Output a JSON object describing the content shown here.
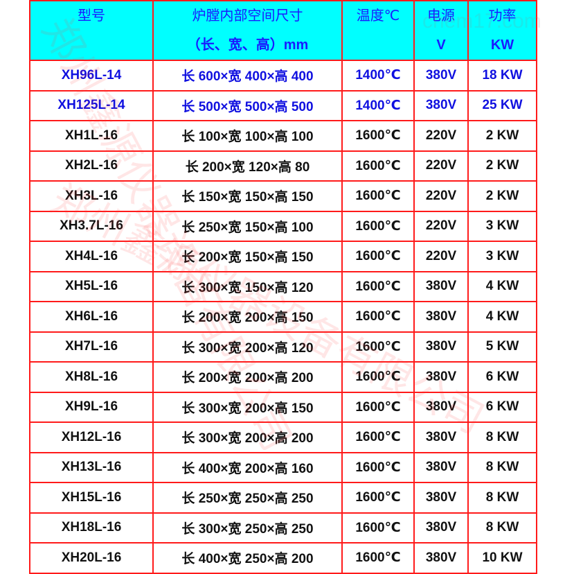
{
  "header": [
    {
      "line1": "型号",
      "line2": ""
    },
    {
      "line1": "炉膛内部空间尺寸",
      "line2": "（长、宽、高）mm"
    },
    {
      "line1": "温度℃",
      "line2": ""
    },
    {
      "line1": "电源",
      "line2": "V"
    },
    {
      "line1": "功率",
      "line2": "KW"
    }
  ],
  "rows": [
    {
      "model": "XH96L-14",
      "size": "长 600×宽 400×高 400",
      "temp": "1400℃",
      "voltage": "380V",
      "power": "18 KW",
      "highlight": true
    },
    {
      "model": "XH125L-14",
      "size": "长 500×宽 500×高 500",
      "temp": "1400℃",
      "voltage": "380V",
      "power": "25 KW",
      "highlight": true
    },
    {
      "model": "XH1L-16",
      "size": "长 100×宽 100×高 100",
      "temp": "1600℃",
      "voltage": "220V",
      "power": "2 KW"
    },
    {
      "model": "XH2L-16",
      "size": "长 200×宽 120×高 80",
      "temp": "1600℃",
      "voltage": "220V",
      "power": "2 KW"
    },
    {
      "model": "XH3L-16",
      "size": "长 150×宽 150×高 150",
      "temp": "1600℃",
      "voltage": "220V",
      "power": "2 KW"
    },
    {
      "model": "XH3.7L-16",
      "size": "长 250×宽 150×高 100",
      "temp": "1600℃",
      "voltage": "220V",
      "power": "3 KW"
    },
    {
      "model": "XH4L-16",
      "size": "长 200×宽 150×高 150",
      "temp": "1600℃",
      "voltage": "220V",
      "power": "3 KW"
    },
    {
      "model": "XH5L-16",
      "size": "长 300×宽 150×高 120",
      "temp": "1600℃",
      "voltage": "380V",
      "power": "4 KW"
    },
    {
      "model": "XH6L-16",
      "size": "长 200×宽 200×高 150",
      "temp": "1600℃",
      "voltage": "380V",
      "power": "4 KW"
    },
    {
      "model": "XH7L-16",
      "size": "长 300×宽 200×高 120",
      "temp": "1600℃",
      "voltage": "380V",
      "power": "5 KW"
    },
    {
      "model": "XH8L-16",
      "size": "长 200×宽 200×高 200",
      "temp": "1600℃",
      "voltage": "380V",
      "power": "6 KW"
    },
    {
      "model": "XH9L-16",
      "size": "长 300×宽 200×高 150",
      "temp": "1600℃",
      "voltage": "380V",
      "power": "6 KW"
    },
    {
      "model": "XH12L-16",
      "size": "长 300×宽 200×高 200",
      "temp": "1600℃",
      "voltage": "380V",
      "power": "8 KW"
    },
    {
      "model": "XH13L-16",
      "size": "长 400×宽 200×高 160",
      "temp": "1600℃",
      "voltage": "380V",
      "power": "8 KW"
    },
    {
      "model": "XH15L-16",
      "size": "长 250×宽 250×高 250",
      "temp": "1600℃",
      "voltage": "380V",
      "power": "8 KW"
    },
    {
      "model": "XH18L-16",
      "size": "长 300×宽 250×高 250",
      "temp": "1600℃",
      "voltage": "380V",
      "power": "8 KW"
    },
    {
      "model": "XH20L-16",
      "size": "长 400×宽 250×高 200",
      "temp": "1600℃",
      "voltage": "380V",
      "power": "10 KW"
    }
  ],
  "watermark": {
    "company": "郑州鑫源仪器设备有限公司",
    "site": "chem17.com"
  },
  "colors": {
    "header_bg": "#00ffff",
    "border": "#ff1a1a",
    "header_text": "#1a1aff",
    "highlight_text": "#1010e0"
  }
}
